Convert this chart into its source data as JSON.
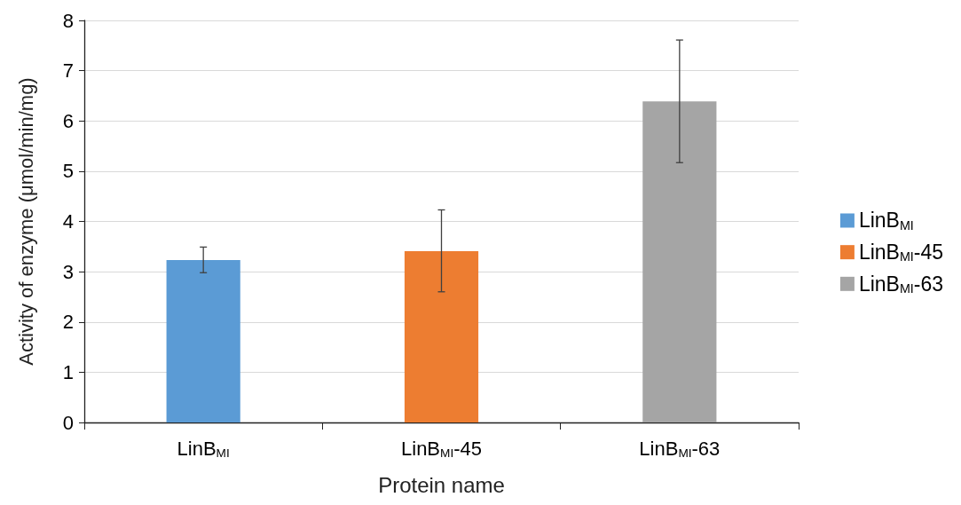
{
  "chart_data": {
    "type": "bar",
    "xlabel": "Protein name",
    "ylabel": "Activity of enzyme (μmol/min/mg)",
    "categories": [
      "LinB$_{MI}$",
      "LinB$_{MI}$-45",
      "LinB$_{MI}$-63"
    ],
    "series": [
      {
        "name": "LinB$_{MI}$",
        "color": "#5b9bd5",
        "values": [
          3.23,
          null,
          null
        ],
        "errors": [
          [
            2.98,
            3.49
          ],
          null,
          null
        ]
      },
      {
        "name": "LinB$_{MI}$-45",
        "color": "#ed7d31",
        "values": [
          null,
          3.41,
          null
        ],
        "errors": [
          null,
          [
            2.6,
            4.23
          ],
          null
        ]
      },
      {
        "name": "LinB$_{MI}$-63",
        "color": "#a5a5a5",
        "values": [
          null,
          null,
          6.39
        ],
        "errors": [
          null,
          null,
          [
            5.17,
            7.61
          ]
        ]
      }
    ],
    "ylim": [
      0,
      8
    ],
    "yticks": [
      0,
      1,
      2,
      3,
      4,
      5,
      6,
      7,
      8
    ],
    "grid": "y",
    "legend": "right"
  }
}
